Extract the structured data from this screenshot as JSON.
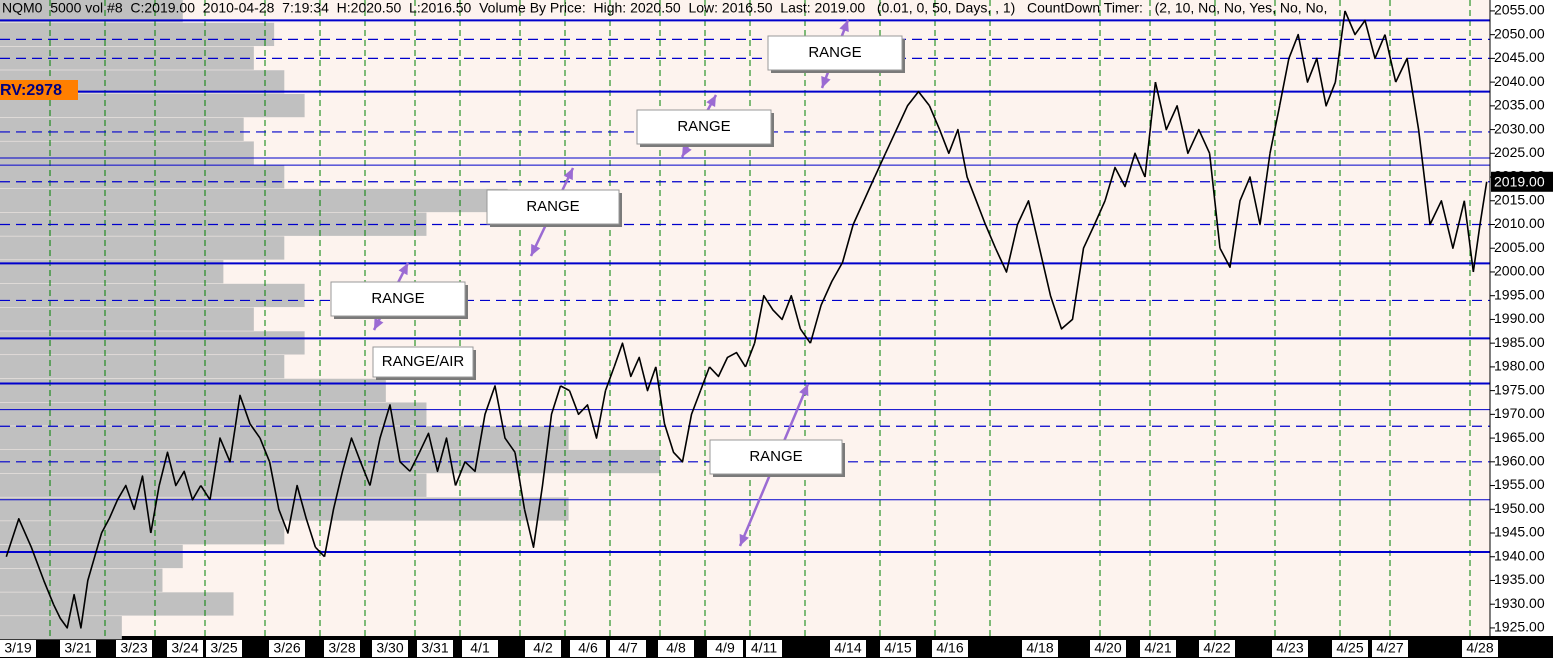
{
  "chart_data": {
    "type": "line",
    "header": "NQM0  5000 vol #8  C:2019.00  2010-04-28  7:19:34  H:2020.50  L:2016.50  Volume By Price:  High: 2020.50  Low: 2016.50  Last: 2019.00   (0.01, 0, 50, Days, , 1)   CountDown Timer:   (2, 10, No, No, Yes, No, No,",
    "marker_label": "RV:2978",
    "last_price": {
      "value": 2019,
      "label": "2019.00"
    },
    "color": "#000000",
    "ylim": [
      1923.3,
      2057.3
    ],
    "yticks": [
      {
        "value": 1925,
        "label": "1925.00"
      },
      {
        "value": 1930,
        "label": "1930.00"
      },
      {
        "value": 1935,
        "label": "1935.00"
      },
      {
        "value": 1940,
        "label": "1940.00"
      },
      {
        "value": 1945,
        "label": "1945.00"
      },
      {
        "value": 1950,
        "label": "1950.00"
      },
      {
        "value": 1955,
        "label": "1955.00"
      },
      {
        "value": 1960,
        "label": "1960.00"
      },
      {
        "value": 1965,
        "label": "1965.00"
      },
      {
        "value": 1970,
        "label": "1970.00"
      },
      {
        "value": 1975,
        "label": "1975.00"
      },
      {
        "value": 1980,
        "label": "1980.00"
      },
      {
        "value": 1985,
        "label": "1985.00"
      },
      {
        "value": 1990,
        "label": "1990.00"
      },
      {
        "value": 1995,
        "label": "1995.00"
      },
      {
        "value": 2000,
        "label": "2000.00"
      },
      {
        "value": 2005,
        "label": "2005.00"
      },
      {
        "value": 2010,
        "label": "2010.00"
      },
      {
        "value": 2015,
        "label": "2015.00"
      },
      {
        "value": 2020,
        "label": "2020.00"
      },
      {
        "value": 2025,
        "label": "2025.00"
      },
      {
        "value": 2030,
        "label": "2030.00"
      },
      {
        "value": 2035,
        "label": "2035.00"
      },
      {
        "value": 2040,
        "label": "2040.00"
      },
      {
        "value": 2045,
        "label": "2045.00"
      },
      {
        "value": 2050,
        "label": "2050.00"
      },
      {
        "value": 2055,
        "label": "2055.00"
      }
    ],
    "sessions": [
      {
        "label": "3/19",
        "values": [
          1940,
          1948,
          1942,
          1935
        ]
      },
      {
        "label": "3/21",
        "values": [
          1930,
          1927,
          1925,
          1932,
          1925,
          1935,
          1940,
          1945
        ]
      },
      {
        "label": "3/23",
        "values": [
          1948,
          1952,
          1955,
          1950,
          1957,
          1945
        ]
      },
      {
        "label": "3/24",
        "values": [
          1955,
          1962,
          1955,
          1958,
          1952,
          1955
        ]
      },
      {
        "label": "3/25",
        "values": [
          1952,
          1965,
          1960,
          1974,
          1968,
          1965
        ]
      },
      {
        "label": "3/26",
        "values": [
          1960,
          1950,
          1945,
          1955,
          1948,
          1942
        ]
      },
      {
        "label": "3/28",
        "values": [
          1940,
          1950,
          1958,
          1965,
          1960
        ]
      },
      {
        "label": "3/30",
        "values": [
          1955,
          1965,
          1972,
          1960,
          1958
        ]
      },
      {
        "label": "3/31",
        "values": [
          1962,
          1966,
          1958,
          1965,
          1955
        ]
      },
      {
        "label": "4/1",
        "values": [
          1960,
          1958,
          1970,
          1976,
          1965,
          1962
        ]
      },
      {
        "label": "4/2",
        "values": [
          1950,
          1942,
          1955,
          1970,
          1976
        ]
      },
      {
        "label": "4/6",
        "values": [
          1975,
          1970,
          1972,
          1965,
          1975
        ]
      },
      {
        "label": "4/7",
        "values": [
          1980,
          1985,
          1978,
          1982,
          1975,
          1980
        ]
      },
      {
        "label": "4/8",
        "values": [
          1968,
          1962,
          1960,
          1970,
          1975
        ]
      },
      {
        "label": "4/9",
        "values": [
          1980,
          1978,
          1982,
          1983,
          1980
        ]
      },
      {
        "label": "4/11",
        "values": [
          1985,
          1995,
          1992,
          1990,
          1995,
          1988
        ]
      },
      {
        "label": "4/14",
        "values": [
          1985,
          1993,
          1998,
          2002,
          2010,
          2015,
          2020
        ]
      },
      {
        "label": "4/15",
        "values": [
          2025,
          2030,
          2035,
          2038,
          2035
        ]
      },
      {
        "label": "4/16",
        "values": [
          2030,
          2025,
          2030,
          2020,
          2015,
          2010
        ]
      },
      {
        "label": "4/18",
        "values": [
          2005,
          2000,
          2010,
          2015,
          2005,
          1995,
          1988,
          1990,
          2005,
          2010
        ]
      },
      {
        "label": "4/20",
        "values": [
          2015,
          2022,
          2018,
          2025,
          2020
        ]
      },
      {
        "label": "4/21",
        "values": [
          2040,
          2030,
          2035,
          2025,
          2030,
          2025
        ]
      },
      {
        "label": "4/22",
        "values": [
          2005,
          2001,
          2015,
          2020,
          2010,
          2025
        ]
      },
      {
        "label": "4/23",
        "values": [
          2035,
          2045,
          2050,
          2040,
          2045,
          2035,
          2040
        ]
      },
      {
        "label": "4/25",
        "values": [
          2055,
          2050,
          2053,
          2045,
          2050
        ]
      },
      {
        "label": "4/27",
        "values": [
          2040,
          2045,
          2030,
          2010,
          2015,
          2005,
          2015
        ]
      },
      {
        "label": "4/28",
        "values": [
          2000,
          2010,
          2019
        ]
      }
    ],
    "levels": {
      "color": "#0000cc",
      "solid": [
        2053,
        2038,
        2001.8,
        1986,
        1976.5,
        1941
      ],
      "thin": [
        2024,
        2022.5,
        1971,
        1952
      ],
      "dashed": [
        2049,
        2045,
        2029.5,
        2019,
        2010,
        1994,
        1967.5,
        1960
      ]
    },
    "grid_color": "#008000",
    "volume_profile": {
      "color": "#c0c0c0",
      "prices": [
        1925,
        1930,
        1935,
        1940,
        1945,
        1950,
        1955,
        1960,
        1965,
        1970,
        1975,
        1980,
        1985,
        1990,
        1995,
        2000,
        2005,
        2010,
        2015,
        2020,
        2025,
        2030,
        2035,
        2040,
        2045,
        2050,
        2055
      ],
      "volumes": [
        120,
        230,
        160,
        180,
        280,
        560,
        420,
        650,
        560,
        420,
        380,
        280,
        300,
        250,
        300,
        220,
        280,
        420,
        500,
        280,
        250,
        240,
        300,
        280,
        250,
        270,
        180
      ]
    },
    "annotations": [
      "RANGE",
      "RANGE",
      "RANGE",
      "RANGE",
      "RANGE/AIR",
      "RANGE"
    ]
  }
}
